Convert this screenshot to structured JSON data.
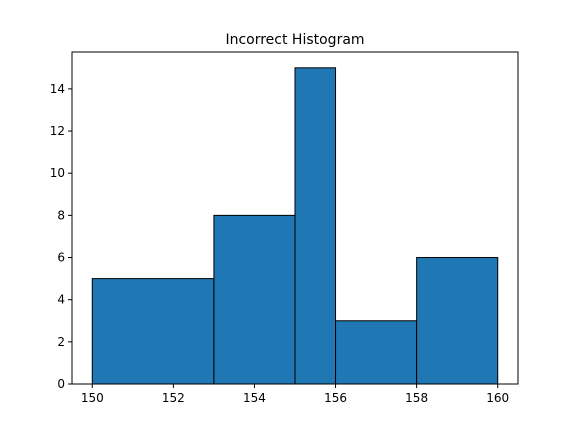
{
  "chart_data": {
    "type": "bar",
    "title": "Incorrect Histogram",
    "xlabel": "",
    "ylabel": "",
    "bins": [
      {
        "x0": 150,
        "x1": 153,
        "value": 5
      },
      {
        "x0": 153,
        "x1": 155,
        "value": 8
      },
      {
        "x0": 155,
        "x1": 156,
        "value": 15
      },
      {
        "x0": 156,
        "x1": 158,
        "value": 3
      },
      {
        "x0": 158,
        "x1": 160,
        "value": 6
      }
    ],
    "xlim": [
      149.5,
      160.5
    ],
    "ylim": [
      0,
      15.75
    ],
    "xticks": [
      "150",
      "152",
      "154",
      "156",
      "158",
      "160"
    ],
    "yticks": [
      "0",
      "2",
      "4",
      "6",
      "8",
      "10",
      "12",
      "14"
    ],
    "grid": false,
    "colors": {
      "bar_fill": "#1f77b4",
      "bar_edge": "#000000",
      "axis": "#000000"
    }
  }
}
